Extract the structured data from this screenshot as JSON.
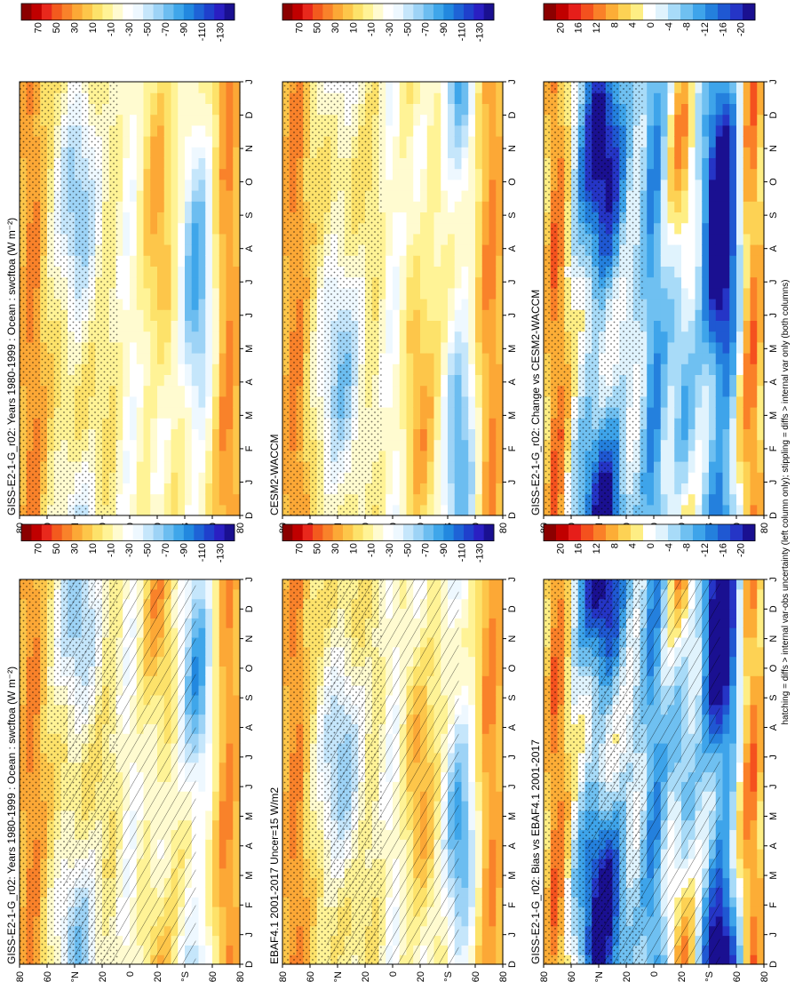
{
  "footer_note": "hatching = diffs > internal var-obs uncertainty (left column only); stippling = diffs > internal var only (both columns)",
  "months": [
    "D",
    "J",
    "F",
    "M",
    "A",
    "M",
    "J",
    "J",
    "A",
    "S",
    "O",
    "N",
    "D",
    "J"
  ],
  "lat_ticks": [
    "80",
    "60",
    "°N",
    "20",
    "0",
    "20",
    "°S",
    "60",
    "80"
  ],
  "colors": {
    "abs": [
      "#8b0000",
      "#c00000",
      "#e8281c",
      "#f35a1e",
      "#f9822a",
      "#fca836",
      "#fdc64a",
      "#fde26a",
      "#fff396",
      "#fffbd0",
      "#ffffff",
      "#eef8ff",
      "#c5e6fb",
      "#9dd3f6",
      "#6cbdf0",
      "#3fa6ea",
      "#2288df",
      "#1e63d6",
      "#1f40cc",
      "#2a1fc2",
      "#1a1091"
    ],
    "diff": [
      "#8b0000",
      "#c00000",
      "#e61e1a",
      "#f4511e",
      "#fa8028",
      "#fcad36",
      "#fdd254",
      "#feee84",
      "#ffffff",
      "#e0f3fd",
      "#a8dbf8",
      "#6fc0f1",
      "#3ea4ea",
      "#2480dd",
      "#1f58d2",
      "#2535c6",
      "#1a1091"
    ]
  },
  "chart_data": [
    {
      "type": "heatmap",
      "title": "GISS-E2-1-G_r02: Years 1980-1999 : Ocean : swcftoa (W m⁻²)",
      "colorbar_ticks": [
        "70",
        "50",
        "30",
        "10",
        "-10",
        "-30",
        "-50",
        "-70",
        "-90",
        "-110",
        "-130"
      ],
      "x": "month (D–J)",
      "y": "latitude (80°N–80°S)",
      "range": [
        -140,
        80
      ],
      "hatching": true,
      "stippling": true
    },
    {
      "type": "heatmap",
      "title": "GISS-E2-1-G_r02: Years 1980-1999 : Ocean : swcftoa (W m⁻²)",
      "colorbar_ticks": [
        "70",
        "50",
        "30",
        "10",
        "-10",
        "-30",
        "-50",
        "-70",
        "-90",
        "-110",
        "-130"
      ],
      "x": "month (D–J)",
      "y": "latitude (80°N–80°S)",
      "range": [
        -140,
        80
      ],
      "hatching": false,
      "stippling": true
    },
    {
      "type": "heatmap",
      "title": "EBAF4.1 2001-2017 Uncer=15 W/m2",
      "colorbar_ticks": [
        "70",
        "50",
        "30",
        "10",
        "-10",
        "-30",
        "-50",
        "-70",
        "-90",
        "-110",
        "-130"
      ],
      "x": "month (D–J)",
      "y": "latitude (80°N–80°S)",
      "range": [
        -140,
        80
      ],
      "hatching": true,
      "stippling": true
    },
    {
      "type": "heatmap",
      "title": "CESM2-WACCM",
      "colorbar_ticks": [
        "70",
        "50",
        "30",
        "10",
        "-10",
        "-30",
        "-50",
        "-70",
        "-90",
        "-110",
        "-130"
      ],
      "x": "month (D–J)",
      "y": "latitude (80°N–80°S)",
      "range": [
        -140,
        80
      ],
      "hatching": false,
      "stippling": true
    },
    {
      "type": "heatmap",
      "title": "GISS-E2-1-G_r02: Bias vs EBAF4.1 2001-2017",
      "colorbar_ticks": [
        "20",
        "16",
        "12",
        "8",
        "4",
        "0",
        "-4",
        "-8",
        "-12",
        "-16",
        "-20"
      ],
      "x": "month (D–J)",
      "y": "latitude (80°N–80°S)",
      "range": [
        -22,
        22
      ],
      "hatching": true,
      "stippling": true
    },
    {
      "type": "heatmap",
      "title": "GISS-E2-1-G_r02: Change vs CESM2-WACCM",
      "colorbar_ticks": [
        "20",
        "16",
        "12",
        "8",
        "4",
        "0",
        "-4",
        "-8",
        "-12",
        "-16",
        "-20"
      ],
      "x": "month (D–J)",
      "y": "latitude (80°N–80°S)",
      "range": [
        -22,
        22
      ],
      "hatching": false,
      "stippling": true
    }
  ]
}
